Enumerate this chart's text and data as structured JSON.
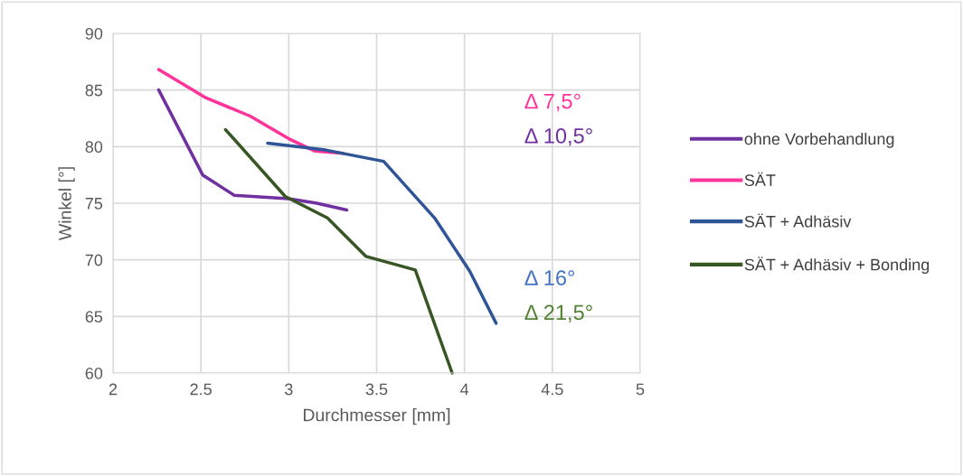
{
  "chart_data": {
    "type": "line",
    "xlabel": "Durchmesser [mm]",
    "ylabel": "Winkel [°]",
    "xlim": [
      2,
      5
    ],
    "xticks": [
      2,
      2.5,
      3,
      3.5,
      4,
      4.5,
      5
    ],
    "ylim": [
      60,
      90
    ],
    "yticks": [
      60,
      65,
      70,
      75,
      80,
      85,
      90
    ],
    "grid": true,
    "legend": "right",
    "marker": "none",
    "line_style": "solid",
    "series": [
      {
        "name": "ohne Vorbehandlung",
        "color": "#7030a0",
        "x": [
          2.26,
          2.51,
          2.69,
          3.0,
          3.16,
          3.33
        ],
        "values": [
          85.0,
          77.5,
          75.7,
          75.4,
          75.0,
          74.4
        ]
      },
      {
        "name": "SÄT",
        "color": "#ff3399",
        "x": [
          2.26,
          2.53,
          2.78,
          3.0,
          3.15,
          3.31
        ],
        "values": [
          86.8,
          84.3,
          82.7,
          80.7,
          79.6,
          79.4
        ]
      },
      {
        "name": "SÄT + Adhäsiv",
        "color": "#2f5597",
        "x": [
          2.88,
          3.21,
          3.54,
          3.83,
          4.03,
          4.18
        ],
        "values": [
          80.3,
          79.7,
          78.7,
          73.7,
          69.0,
          64.4
        ]
      },
      {
        "name": "SÄT + Adhäsiv + Bonding",
        "color": "#375623",
        "x": [
          2.64,
          2.98,
          3.22,
          3.44,
          3.72,
          3.93
        ],
        "values": [
          81.5,
          75.6,
          73.7,
          70.3,
          69.1,
          60.0
        ]
      }
    ],
    "annotations": [
      "Δ 7,5°",
      "Δ 10,5°",
      "Δ 16°",
      "Δ 21,5°"
    ]
  }
}
